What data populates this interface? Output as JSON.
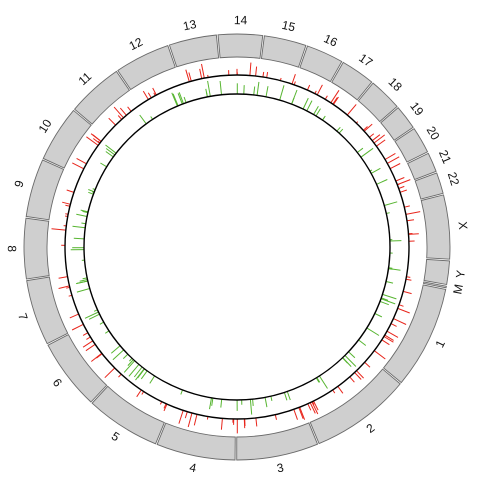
{
  "diagram": {
    "type": "circos",
    "chromosomes": [
      "1",
      "2",
      "3",
      "4",
      "5",
      "6",
      "7",
      "8",
      "9",
      "10",
      "11",
      "12",
      "13",
      "14",
      "15",
      "16",
      "17",
      "18",
      "19",
      "20",
      "21",
      "22",
      "X",
      "Y",
      "M"
    ],
    "colors": {
      "ideogram_fill": "#cfcfcf",
      "ideogram_stroke": "#6a6a6a",
      "outer_track_marks": "#e8251b",
      "inner_track_marks": "#57b531",
      "track_baseline": "#000000"
    }
  }
}
